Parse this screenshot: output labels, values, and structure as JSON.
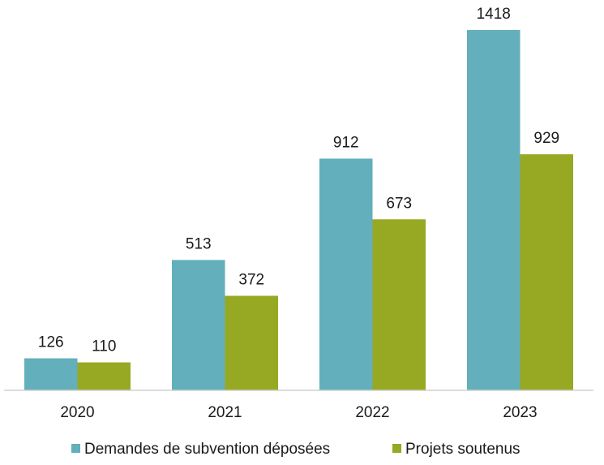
{
  "chart_data": {
    "type": "bar",
    "title": "",
    "xlabel": "",
    "ylabel": "",
    "categories": [
      "2020",
      "2021",
      "2022",
      "2023"
    ],
    "series": [
      {
        "name": "Demandes de subvention déposées",
        "values": [
          126,
          513,
          912,
          1418
        ],
        "color": "#63afbb"
      },
      {
        "name": "Projets soutenus",
        "values": [
          110,
          372,
          673,
          929
        ],
        "color": "#97a823"
      }
    ],
    "ylim": [
      0,
      1418
    ],
    "grid": false,
    "legend_position": "bottom"
  }
}
